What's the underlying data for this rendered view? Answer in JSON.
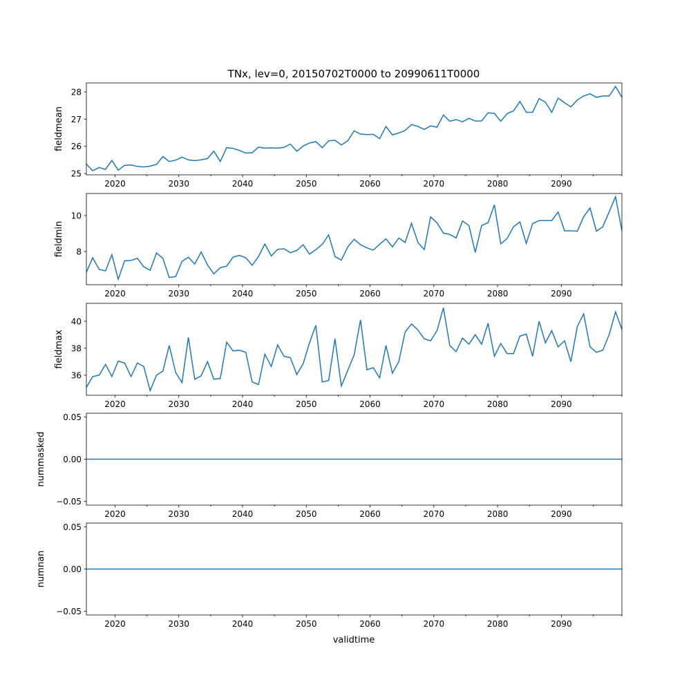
{
  "chart_data": {
    "type": "line",
    "title": "TNx, lev=0, 20150702T0000 to 20990611T0000",
    "xlabel": "validtime",
    "x_start": 2015.5,
    "x_step": 1,
    "xlim": [
      2015.5,
      2099.5
    ],
    "x_ticks": [
      2020,
      2030,
      2040,
      2050,
      2060,
      2070,
      2080,
      2090
    ],
    "line_color": "#1f77b4",
    "panels": [
      {
        "ylabel": "fieldmean",
        "ylim": [
          24.95,
          28.33
        ],
        "y_ticks": [
          25,
          26,
          27,
          28
        ],
        "y_tick_labels": [
          "25",
          "26",
          "27",
          "28"
        ],
        "values": [
          25.35,
          25.1,
          25.22,
          25.15,
          25.48,
          25.12,
          25.3,
          25.31,
          25.26,
          25.24,
          25.27,
          25.33,
          25.62,
          25.44,
          25.49,
          25.6,
          25.5,
          25.47,
          25.5,
          25.55,
          25.82,
          25.44,
          25.95,
          25.92,
          25.85,
          25.75,
          25.76,
          25.97,
          25.93,
          25.94,
          25.93,
          25.96,
          26.08,
          25.82,
          26.01,
          26.12,
          26.17,
          25.95,
          26.2,
          26.22,
          26.05,
          26.2,
          26.57,
          26.45,
          26.43,
          26.44,
          26.28,
          26.73,
          26.42,
          26.49,
          26.58,
          26.8,
          26.73,
          26.62,
          26.75,
          26.7,
          27.15,
          26.92,
          26.98,
          26.9,
          27.03,
          26.93,
          26.93,
          27.23,
          27.21,
          26.92,
          27.2,
          27.3,
          27.65,
          27.25,
          27.25,
          27.75,
          27.62,
          27.25,
          27.77,
          27.6,
          27.45,
          27.7,
          27.85,
          27.93,
          27.8,
          27.85,
          27.85,
          28.2,
          27.8
        ]
      },
      {
        "ylabel": "fieldmin",
        "ylim": [
          6.15,
          11.23
        ],
        "y_ticks": [
          8,
          10
        ],
        "y_tick_labels": [
          "8",
          "10"
        ],
        "values": [
          6.85,
          7.65,
          7.0,
          6.92,
          7.82,
          6.45,
          7.48,
          7.5,
          7.62,
          7.15,
          6.95,
          7.92,
          7.62,
          6.55,
          6.6,
          7.45,
          7.68,
          7.3,
          7.97,
          7.25,
          6.75,
          7.1,
          7.18,
          7.68,
          7.78,
          7.65,
          7.23,
          7.72,
          8.42,
          7.75,
          8.12,
          8.15,
          7.93,
          8.05,
          8.38,
          7.85,
          8.1,
          8.4,
          8.92,
          7.72,
          7.52,
          8.25,
          8.68,
          8.38,
          8.2,
          8.08,
          8.4,
          8.7,
          8.25,
          8.75,
          8.5,
          9.57,
          8.5,
          8.1,
          9.93,
          9.6,
          9.02,
          8.95,
          8.75,
          9.7,
          9.45,
          7.95,
          9.45,
          9.6,
          10.6,
          8.42,
          8.72,
          9.38,
          9.65,
          8.45,
          9.55,
          9.72,
          9.72,
          9.72,
          10.2,
          9.15,
          9.15,
          9.13,
          9.93,
          10.42,
          9.13,
          9.38,
          10.2,
          11.05,
          9.15
        ]
      },
      {
        "ylabel": "fieldmax",
        "ylim": [
          34.51,
          41.33
        ],
        "y_ticks": [
          36,
          38,
          40
        ],
        "y_tick_labels": [
          "36",
          "38",
          "40"
        ],
        "values": [
          35.1,
          35.9,
          36.0,
          36.8,
          35.9,
          37.05,
          36.9,
          35.9,
          36.9,
          36.65,
          34.85,
          36.0,
          36.3,
          38.2,
          36.2,
          35.45,
          38.8,
          35.7,
          35.95,
          37.0,
          35.7,
          35.75,
          38.45,
          37.8,
          37.85,
          37.7,
          35.5,
          35.3,
          37.55,
          36.65,
          38.25,
          37.4,
          37.3,
          36.05,
          36.85,
          38.4,
          39.7,
          35.5,
          35.6,
          38.7,
          35.2,
          36.35,
          37.5,
          40.1,
          36.4,
          36.55,
          35.8,
          38.2,
          36.15,
          37.0,
          39.2,
          39.8,
          39.35,
          38.7,
          38.55,
          39.3,
          41.0,
          38.2,
          37.75,
          38.75,
          38.3,
          39.0,
          38.3,
          39.85,
          37.4,
          38.35,
          37.6,
          37.6,
          38.9,
          39.05,
          37.4,
          40.0,
          38.4,
          39.3,
          38.1,
          38.55,
          37.0,
          39.6,
          40.55,
          38.1,
          37.7,
          37.85,
          39.0,
          40.7,
          39.4
        ]
      },
      {
        "ylabel": "nummasked",
        "ylim": [
          -0.0546,
          0.0546
        ],
        "y_ticks": [
          -0.05,
          0,
          0.05
        ],
        "y_tick_labels": [
          "−0.05",
          "0.00",
          "0.05"
        ],
        "constant": 0
      },
      {
        "ylabel": "numnan",
        "ylim": [
          -0.0546,
          0.0546
        ],
        "y_ticks": [
          -0.05,
          0,
          0.05
        ],
        "y_tick_labels": [
          "−0.05",
          "0.00",
          "0.05"
        ],
        "constant": 0
      }
    ]
  }
}
